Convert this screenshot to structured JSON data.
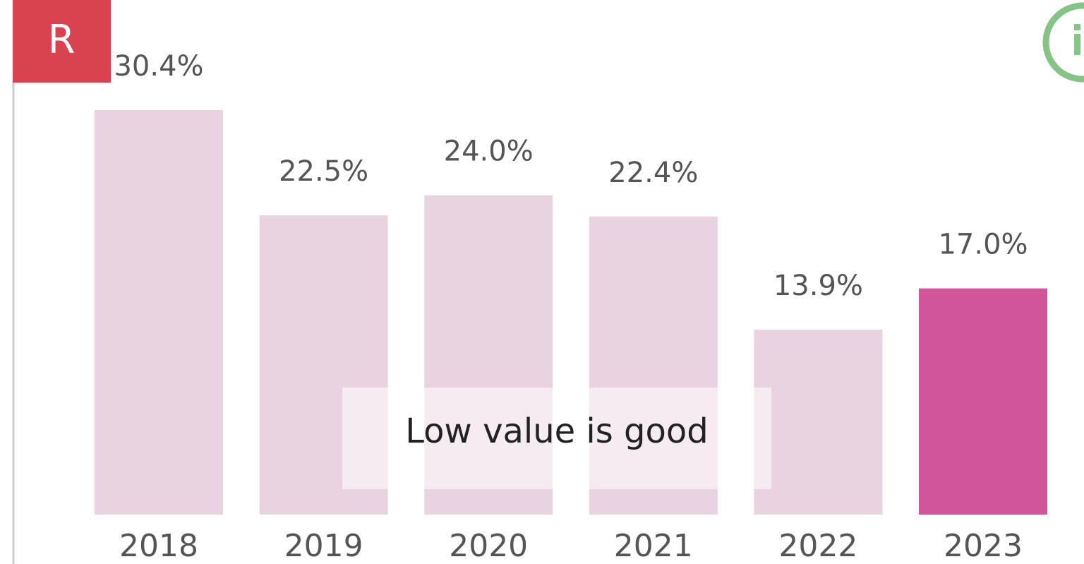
{
  "badge": "R",
  "chart_data": {
    "type": "bar",
    "categories": [
      "2018",
      "2019",
      "2020",
      "2021",
      "2022",
      "2023"
    ],
    "values": [
      30.4,
      22.5,
      24.0,
      22.4,
      13.9,
      17.0
    ],
    "value_labels": [
      "30.4%",
      "22.5%",
      "24.0%",
      "22.4%",
      "13.9%",
      "17.0%"
    ],
    "colors": [
      "#ead3e0",
      "#ead3e0",
      "#ead3e0",
      "#ead3e0",
      "#ead3e0",
      "#d1559b"
    ],
    "annotation": "Low value is good"
  }
}
